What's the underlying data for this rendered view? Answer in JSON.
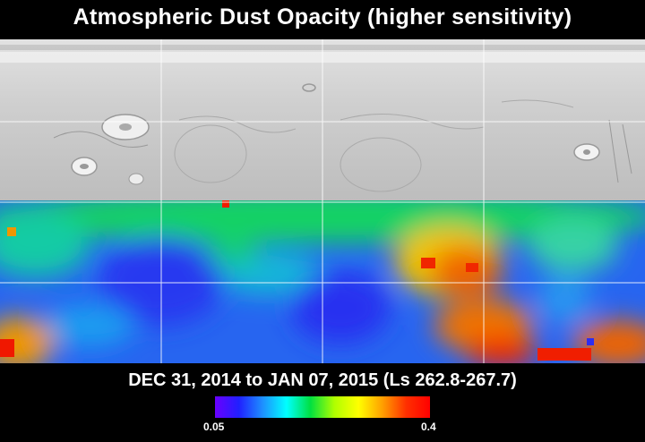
{
  "title": "Atmospheric Dust Opacity (higher sensitivity)",
  "date_range": "DEC 31, 2014 to JAN 07, 2015 (Ls 262.8-267.7)",
  "colorbar": {
    "min_label": "0.05",
    "max_label": "0.4",
    "colors": [
      "#6a00ff",
      "#2020ff",
      "#1e90ff",
      "#00ffff",
      "#00e040",
      "#b0ff00",
      "#ffff00",
      "#ffa000",
      "#ff3000",
      "#ff0000"
    ]
  },
  "map": {
    "base_color": "#c9c9c9",
    "grid_color": "#ffffff"
  }
}
